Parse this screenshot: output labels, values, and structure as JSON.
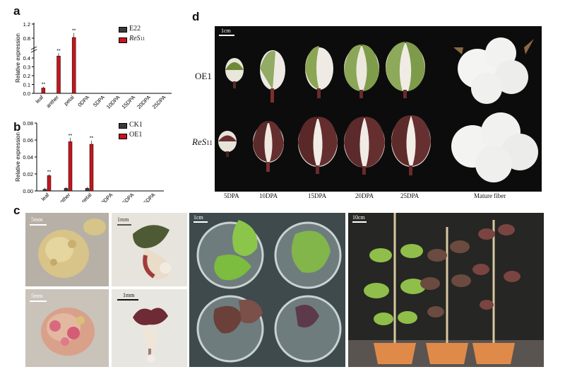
{
  "panels": {
    "a": "a",
    "b": "b",
    "c": "c",
    "d": "d"
  },
  "chart_data": [
    {
      "type": "bar",
      "ylabel": "Relative expression",
      "categories": [
        "leaf",
        "anther",
        "petal",
        "0DPA",
        "5DPA",
        "10DPA",
        "15DPA",
        "20DPA",
        "25DPA"
      ],
      "yticks": [
        "0.0",
        "0.1",
        "0.2",
        "0.3",
        "0.4",
        "0.8",
        "1.2"
      ],
      "axis_break": true,
      "series": [
        {
          "name": "E22",
          "color": "#3a3a3a",
          "values": [
            0.0,
            0.0,
            0.0,
            0,
            0,
            0,
            0,
            0,
            0
          ]
        },
        {
          "name": "ReS11",
          "color": "#c4161c",
          "values": [
            0.06,
            0.44,
            0.82,
            0,
            0,
            0,
            0,
            0,
            0
          ]
        }
      ],
      "significance": [
        "**",
        "**",
        "**"
      ],
      "legend": "top-right"
    },
    {
      "type": "bar",
      "ylabel": "Relative expression",
      "categories": [
        "leaf",
        "anther",
        "petal",
        "0DPA",
        "5DPA",
        "15DPA"
      ],
      "yticks": [
        "0.00",
        "0.02",
        "0.04",
        "0.06",
        "0.08"
      ],
      "ylim": [
        0,
        0.08
      ],
      "series": [
        {
          "name": "CK1",
          "color": "#3a3a3a",
          "values": [
            0.002,
            0.003,
            0.003,
            0,
            0,
            0
          ]
        },
        {
          "name": "OE1",
          "color": "#c4161c",
          "values": [
            0.018,
            0.058,
            0.055,
            0,
            0,
            0
          ]
        }
      ],
      "significance": [
        "**",
        "**",
        "**"
      ],
      "legend": "top-right"
    }
  ],
  "legend_a": {
    "e22": "E22",
    "res": "ReS",
    "res_sub": "11"
  },
  "legend_b": {
    "ck1": "CK1",
    "oe1": "OE1"
  },
  "panel_d": {
    "scale": "1cm",
    "row1": "OE1",
    "row2_main": "ReS",
    "row2_sub": "11",
    "stages": [
      "5DPA",
      "10DPA",
      "15DPA",
      "20DPA",
      "25DPA",
      "Mature fiber"
    ]
  },
  "panel_c": {
    "scales": [
      "5mm",
      "1mm",
      "5mm",
      "1mm",
      "1cm",
      "10cm"
    ]
  }
}
